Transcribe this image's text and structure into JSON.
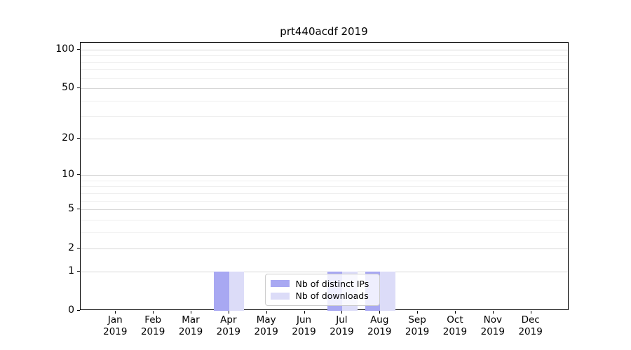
{
  "title": "prt440acdf 2019",
  "chart_data": {
    "type": "bar",
    "title": "prt440acdf 2019",
    "xlabel": "",
    "ylabel": "",
    "categories": [
      "Jan 2019",
      "Feb 2019",
      "Mar 2019",
      "Apr 2019",
      "May 2019",
      "Jun 2019",
      "Jul 2019",
      "Aug 2019",
      "Sep 2019",
      "Oct 2019",
      "Nov 2019",
      "Dec 2019"
    ],
    "series": [
      {
        "name": "Nb of distinct IPs",
        "color": "#a8a8f2",
        "values": [
          0,
          0,
          0,
          1,
          0,
          0,
          1,
          1,
          0,
          0,
          0,
          0
        ]
      },
      {
        "name": "Nb of downloads",
        "color": "#dcdcf8",
        "values": [
          0,
          0,
          0,
          1,
          0,
          0,
          1,
          1,
          0,
          0,
          0,
          0
        ]
      }
    ],
    "yscale": "log10(1+y)",
    "yticks_major": [
      0,
      1,
      2,
      5,
      10,
      20,
      50,
      100
    ],
    "yticks_minor": [
      3,
      4,
      6,
      7,
      8,
      9,
      30,
      40,
      60,
      70,
      80,
      90
    ],
    "ylim": [
      0,
      115
    ],
    "grid": "horizontal, major and minor",
    "legend_position": "lower center inside plot"
  },
  "colors": {
    "bar_distinct_ips": "#a8a8f2",
    "bar_downloads": "#dcdcf8",
    "grid_major": "#d7d7d7",
    "grid_minor": "#efefef",
    "spine": "#000000",
    "legend_border": "#cccccc",
    "legend_background": "rgba(255,255,255,0.8)",
    "text": "#000000"
  }
}
